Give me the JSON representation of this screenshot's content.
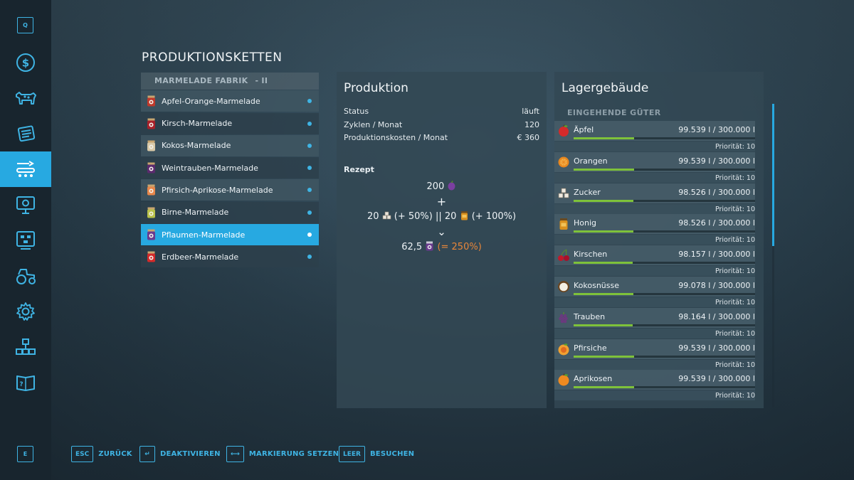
{
  "sidebar": {
    "top_key": "Q",
    "bottom_key": "E",
    "items": [
      {
        "icon": "dollar-icon"
      },
      {
        "icon": "cow-icon"
      },
      {
        "icon": "contracts-icon"
      },
      {
        "icon": "production-chains-icon",
        "active": true
      },
      {
        "icon": "presentation-icon"
      },
      {
        "icon": "board-icon"
      },
      {
        "icon": "tractor-icon"
      },
      {
        "icon": "gear-icon"
      },
      {
        "icon": "hierarchy-icon"
      },
      {
        "icon": "help-book-icon"
      }
    ]
  },
  "page_title": "PRODUKTIONSKETTEN",
  "chains": {
    "header_name": "MARMELADE FABRIK",
    "header_sep": "- II",
    "items": [
      {
        "label": "Apfel-Orange-Marmelade",
        "color": "#c0392b"
      },
      {
        "label": "Kirsch-Marmelade",
        "color": "#a8202a"
      },
      {
        "label": "Kokos-Marmelade",
        "color": "#d9c9a8"
      },
      {
        "label": "Weintrauben-Marmelade",
        "color": "#5b2a6e"
      },
      {
        "label": "Pfirsich-Aprikose-Marmelade",
        "color": "#e8874a"
      },
      {
        "label": "Birne-Marmelade",
        "color": "#b9c24a"
      },
      {
        "label": "Pflaumen-Marmelade",
        "color": "#6a3a8e",
        "selected": true
      },
      {
        "label": "Erdbeer-Marmelade",
        "color": "#d42a2a"
      }
    ]
  },
  "production": {
    "title": "Produktion",
    "rows": [
      {
        "label": "Status",
        "value": "läuft"
      },
      {
        "label": "Zyklen / Monat",
        "value": "120"
      },
      {
        "label": "Produktionskosten / Monat",
        "value": "€ 360"
      }
    ],
    "recipe_title": "Rezept",
    "recipe": {
      "input_main": "200",
      "plus": "+",
      "sugar_amount": "20",
      "sugar_bonus": "(+ 50%)",
      "or": "||",
      "honey_amount": "20",
      "honey_bonus": "(+ 100%)",
      "arrow": "⌄",
      "output_amount": "62,5",
      "output_bonus": "(= 250%)"
    }
  },
  "storage": {
    "title": "Lagergebäude",
    "subtitle": "EINGEHENDE GÜTER",
    "goods": [
      {
        "name": "Äpfel",
        "amount": "99.539 l / 300.000 l",
        "fill": 0.332,
        "priority": "Priorität: 10",
        "icon": "apple-icon"
      },
      {
        "name": "Orangen",
        "amount": "99.539 l / 300.000 l",
        "fill": 0.332,
        "priority": "Priorität: 10",
        "icon": "orange-icon"
      },
      {
        "name": "Zucker",
        "amount": "98.526 l / 300.000 l",
        "fill": 0.328,
        "priority": "Priorität: 10",
        "icon": "sugar-icon"
      },
      {
        "name": "Honig",
        "amount": "98.526 l / 300.000 l",
        "fill": 0.328,
        "priority": "Priorität: 10",
        "icon": "honey-icon"
      },
      {
        "name": "Kirschen",
        "amount": "98.157 l / 300.000 l",
        "fill": 0.327,
        "priority": "Priorität: 10",
        "icon": "cherry-icon"
      },
      {
        "name": "Kokosnüsse",
        "amount": "99.078 l / 300.000 l",
        "fill": 0.33,
        "priority": "Priorität: 10",
        "icon": "coconut-icon"
      },
      {
        "name": "Trauben",
        "amount": "98.164 l / 300.000 l",
        "fill": 0.327,
        "priority": "Priorität: 10",
        "icon": "grapes-icon"
      },
      {
        "name": "Pfirsiche",
        "amount": "99.539 l / 300.000 l",
        "fill": 0.332,
        "priority": "Priorität: 10",
        "icon": "peach-icon"
      },
      {
        "name": "Aprikosen",
        "amount": "99.539 l / 300.000 l",
        "fill": 0.332,
        "priority": "Priorität: 10",
        "icon": "apricot-icon"
      }
    ]
  },
  "footer": [
    {
      "key": "ESC",
      "label": "ZURÜCK"
    },
    {
      "key": "↵",
      "label": "DEAKTIVIEREN"
    },
    {
      "key": "⟷",
      "label": "MARKIERUNG SETZEN"
    },
    {
      "key": "LEER",
      "label": "BESUCHEN"
    }
  ]
}
